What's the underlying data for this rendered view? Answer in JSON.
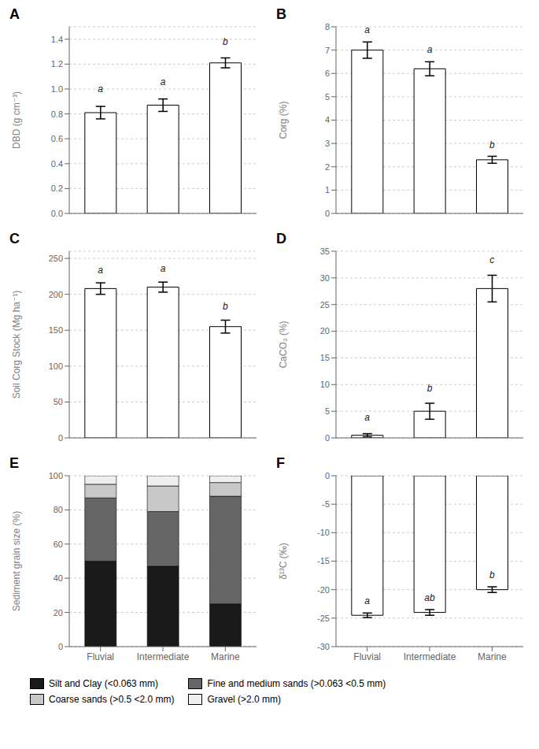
{
  "chart_data": [
    {
      "type": "bar",
      "title": "A",
      "categories": [
        "Fluvial",
        "Intermediate",
        "Marine"
      ],
      "values": [
        0.81,
        0.87,
        1.21
      ],
      "errors": [
        0.05,
        0.05,
        0.04
      ],
      "color": "#ffffff",
      "ylabel": "DBD (g cm⁻³)",
      "ylim": [
        0,
        1.5
      ],
      "yticks": [
        {
          "value": 0,
          "label": "0.0"
        },
        0.2,
        0.4,
        0.6,
        0.8,
        {
          "value": 1,
          "label": "1.0"
        },
        1.2,
        1.4
      ],
      "annotations": [
        {
          "text": "a",
          "x": "Fluvial",
          "y": 0.94
        },
        {
          "text": "a",
          "x": "Intermediate",
          "y": 1.0
        },
        {
          "text": "b",
          "x": "Marine",
          "y": 1.32
        }
      ],
      "tick_labels": "y"
    },
    {
      "type": "bar",
      "title": "B",
      "categories": [
        "Fluvial",
        "Intermediate",
        "Marine"
      ],
      "values": [
        7.0,
        6.2,
        2.3
      ],
      "errors": [
        0.35,
        0.3,
        0.15
      ],
      "color": "#ffffff",
      "ylabel": "Corg (%)",
      "ylim": [
        0,
        8
      ],
      "yticks": [
        0,
        1,
        2,
        3,
        4,
        5,
        6,
        7,
        8
      ],
      "annotations": [
        {
          "text": "a",
          "x": "Fluvial",
          "y": 7.55
        },
        {
          "text": "a",
          "x": "Intermediate",
          "y": 6.72
        },
        {
          "text": "b",
          "x": "Marine",
          "y": 2.62
        }
      ],
      "tick_labels": "y"
    },
    {
      "type": "bar",
      "title": "C",
      "categories": [
        "Fluvial",
        "Intermediate",
        "Marine"
      ],
      "values": [
        208,
        210,
        155
      ],
      "errors": [
        8,
        7,
        9
      ],
      "color": "#ffffff",
      "ylabel": "Soil Corg Stock (Mg ha⁻¹)",
      "ylim": [
        0,
        260
      ],
      "yticks": [
        0,
        50,
        100,
        150,
        200,
        250
      ],
      "annotations": [
        {
          "text": "a",
          "x": "Fluvial",
          "y": 224
        },
        {
          "text": "a",
          "x": "Intermediate",
          "y": 226
        },
        {
          "text": "b",
          "x": "Marine",
          "y": 173
        }
      ],
      "tick_labels": "y"
    },
    {
      "type": "bar",
      "title": "D",
      "categories": [
        "Fluvial",
        "Intermediate",
        "Marine"
      ],
      "values": [
        0.5,
        5.0,
        28.0
      ],
      "errors": [
        0.3,
        1.5,
        2.5
      ],
      "color": "#ffffff",
      "ylabel": "CaCO₃ (%)",
      "ylim": [
        0,
        35
      ],
      "yticks": [
        0,
        5,
        10,
        15,
        20,
        25,
        30,
        35
      ],
      "annotations": [
        {
          "text": "a",
          "x": "Fluvial",
          "y": 2.5
        },
        {
          "text": "b",
          "x": "Intermediate",
          "y": 8.0
        },
        {
          "text": "c",
          "x": "Marine",
          "y": 32.0
        }
      ],
      "tick_labels": "y"
    },
    {
      "type": "bar",
      "title": "E",
      "categories": [
        "Fluvial",
        "Intermediate",
        "Marine"
      ],
      "stacked": true,
      "legend": "lower left",
      "ylabel": "Sediment grain size (%)",
      "ylim": [
        0,
        100
      ],
      "yticks": [
        0,
        20,
        40,
        60,
        80,
        100
      ],
      "series": [
        {
          "name": "Silt and Clay (<0.063 mm)",
          "color": "#1a1a1a",
          "values": [
            50,
            47,
            25
          ]
        },
        {
          "name": "Fine and medium sands (>0.063 <0.5 mm)",
          "color": "#666666",
          "values": [
            37,
            32,
            63
          ]
        },
        {
          "name": "Coarse sands (>0.5 <2.0 mm)",
          "color": "#c8c8c8",
          "values": [
            8,
            15,
            8
          ]
        },
        {
          "name": "Gravel (>2.0 mm)",
          "color": "#efefef",
          "values": [
            5,
            6,
            4
          ]
        }
      ]
    },
    {
      "type": "bar",
      "title": "F",
      "categories": [
        "Fluvial",
        "Intermediate",
        "Marine"
      ],
      "values": [
        -24.5,
        -24.0,
        -20.0
      ],
      "errors": [
        0.4,
        0.5,
        0.5
      ],
      "color": "#ffffff",
      "ylabel": "δ¹³C (‰)",
      "ylim": [
        -30,
        0
      ],
      "yticks": [
        -30,
        -25,
        -20,
        -15,
        -10,
        -5,
        0
      ],
      "annotations": [
        {
          "text": "a",
          "x": "Fluvial",
          "y": -23.2
        },
        {
          "text": "ab",
          "x": "Intermediate",
          "y": -22.7
        },
        {
          "text": "b",
          "x": "Marine",
          "y": -18.7
        }
      ]
    }
  ]
}
